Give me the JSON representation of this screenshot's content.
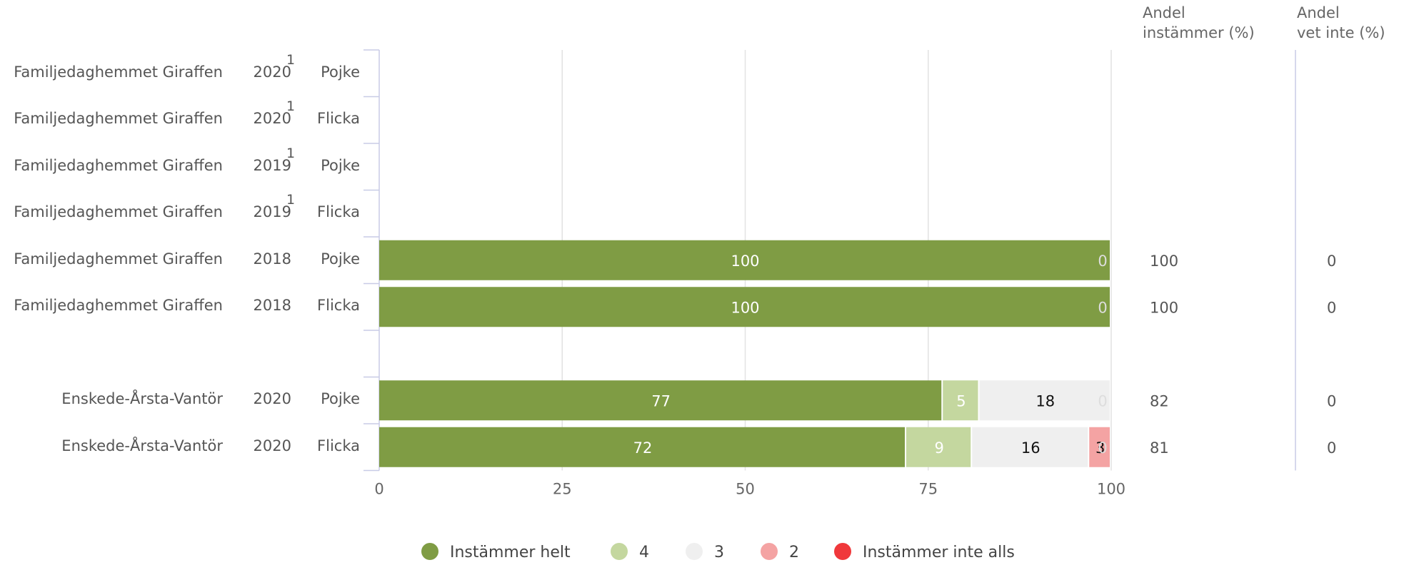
{
  "chart_data": {
    "type": "bar",
    "stacked": true,
    "orientation": "horizontal",
    "xlim": [
      0,
      100
    ],
    "x_ticks": [
      0,
      25,
      50,
      75,
      100
    ],
    "grid": true,
    "legend_position": "bottom",
    "right_columns": [
      {
        "line1": "Andel",
        "line2": "instämmer (%)"
      },
      {
        "line1": "Andel",
        "line2": "vet inte (%)"
      }
    ],
    "series": [
      {
        "name": "Instämmer helt",
        "color": "#7f9c44",
        "label_color": "#ffffff"
      },
      {
        "name": "4",
        "color": "#c4d79f",
        "label_color": "#ffffff"
      },
      {
        "name": "3",
        "color": "#efefef",
        "label_color": "#111111"
      },
      {
        "name": "2",
        "color": "#f4a3a3",
        "label_color": "#111111"
      },
      {
        "name": "Instämmer inte alls",
        "color": "#f0383b",
        "label_color": "#ffffff"
      }
    ],
    "rows": [
      {
        "unit": "Familjedaghemmet Giraffen",
        "year": "2020",
        "note": "1",
        "gender": "Pojke",
        "values": null,
        "agree": "",
        "dontknow": ""
      },
      {
        "unit": "Familjedaghemmet Giraffen",
        "year": "2020",
        "note": "1",
        "gender": "Flicka",
        "values": null,
        "agree": "",
        "dontknow": ""
      },
      {
        "unit": "Familjedaghemmet Giraffen",
        "year": "2019",
        "note": "1",
        "gender": "Pojke",
        "values": null,
        "agree": "",
        "dontknow": ""
      },
      {
        "unit": "Familjedaghemmet Giraffen",
        "year": "2019",
        "note": "1",
        "gender": "Flicka",
        "values": null,
        "agree": "",
        "dontknow": ""
      },
      {
        "unit": "Familjedaghemmet Giraffen",
        "year": "2018",
        "note": "",
        "gender": "Pojke",
        "values": [
          100,
          0,
          0,
          0,
          0
        ],
        "labels": [
          "100",
          "",
          "",
          "",
          "0"
        ],
        "agree": "100",
        "dontknow": "0"
      },
      {
        "unit": "Familjedaghemmet Giraffen",
        "year": "2018",
        "note": "",
        "gender": "Flicka",
        "values": [
          100,
          0,
          0,
          0,
          0
        ],
        "labels": [
          "100",
          "",
          "",
          "",
          "0"
        ],
        "agree": "100",
        "dontknow": "0"
      },
      {
        "gap": true
      },
      {
        "unit": "Enskede-Årsta-Vantör",
        "year": "2020",
        "note": "",
        "gender": "Pojke",
        "values": [
          77,
          5,
          18,
          0,
          0
        ],
        "labels": [
          "77",
          "5",
          "18",
          "",
          "0"
        ],
        "agree": "82",
        "dontknow": "0"
      },
      {
        "unit": "Enskede-Årsta-Vantör",
        "year": "2020",
        "note": "",
        "gender": "Flicka",
        "values": [
          72,
          9,
          16,
          3,
          0
        ],
        "labels": [
          "72",
          "9",
          "16",
          "3",
          "0"
        ],
        "agree": "81",
        "dontknow": "0"
      }
    ]
  }
}
